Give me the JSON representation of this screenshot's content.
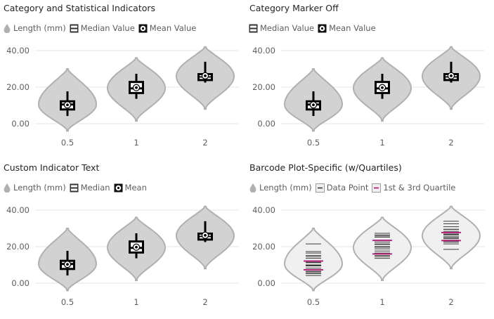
{
  "colors": {
    "violin_fill": "#d2d2d2",
    "violin_fill_light": "#f0f0f0",
    "violin_stroke": "#b0b0b0",
    "box": "#000000",
    "quartile": "#b5267e",
    "data_line": "#3c3c3c",
    "grid": "#e6e6e6",
    "text": "#605e5c",
    "title": "#252423"
  },
  "panels": [
    {
      "title": "Category and Statistical Indicators",
      "legend": [
        {
          "label": "Length (mm)",
          "icon": "drop-icon"
        },
        {
          "label": "Median Value",
          "icon": "median-box-icon"
        },
        {
          "label": "Mean Value",
          "icon": "mean-circle-icon"
        }
      ]
    },
    {
      "title": "Category Marker Off",
      "legend": [
        {
          "label": "Median Value",
          "icon": "median-box-icon"
        },
        {
          "label": "Mean Value",
          "icon": "mean-circle-icon"
        }
      ]
    },
    {
      "title": "Custom Indicator Text",
      "legend": [
        {
          "label": "Length (mm)",
          "icon": "drop-icon"
        },
        {
          "label": "Median",
          "icon": "median-box-icon"
        },
        {
          "label": "Mean",
          "icon": "mean-circle-icon"
        }
      ]
    },
    {
      "title": "Barcode Plot-Specific (w/Quartiles)",
      "legend": [
        {
          "label": "Length (mm)",
          "icon": "drop-icon"
        },
        {
          "label": "Data Point",
          "icon": "data-point-icon"
        },
        {
          "label": "1st & 3rd Quartile",
          "icon": "quartile-icon"
        }
      ]
    }
  ],
  "chart_data": [
    {
      "type": "violin",
      "style": "box",
      "title": "Category and Statistical Indicators",
      "categories": [
        "0.5",
        "1",
        "2"
      ],
      "y_ticks": [
        "0.00",
        "20.00",
        "40.00"
      ],
      "ylim": [
        -4,
        42
      ],
      "grid": true,
      "series": [
        {
          "name": "Length (mm)",
          "groups": [
            {
              "category": "0.5",
              "min": 4.2,
              "q1": 7.2,
              "median": 10.5,
              "q3": 12.8,
              "max": 17.7,
              "mean": 10.3,
              "density_range": [
                -4,
                30
              ],
              "peak": 10.5
            },
            {
              "category": "1",
              "min": 13.6,
              "q1": 16.2,
              "median": 19.3,
              "q3": 23.4,
              "max": 27.3,
              "mean": 19.7,
              "density_range": [
                1.5,
                36
              ],
              "peak": 19.5
            },
            {
              "category": "2",
              "min": 22.5,
              "q1": 23.3,
              "median": 25.8,
              "q3": 27.7,
              "max": 33.9,
              "mean": 26.2,
              "density_range": [
                8,
                42
              ],
              "peak": 26
            }
          ]
        }
      ]
    },
    {
      "type": "violin",
      "style": "box",
      "title": "Category Marker Off",
      "categories": [
        "0.5",
        "1",
        "2"
      ],
      "y_ticks": [
        "0.00",
        "20.00",
        "40.00"
      ],
      "ylim": [
        -4,
        42
      ],
      "grid": true,
      "series": [
        {
          "name": "Length (mm)",
          "groups": [
            {
              "category": "0.5",
              "min": 4.2,
              "q1": 7.2,
              "median": 10.5,
              "q3": 12.8,
              "max": 17.7,
              "mean": 10.3,
              "density_range": [
                -4,
                30
              ],
              "peak": 10.5
            },
            {
              "category": "1",
              "min": 13.6,
              "q1": 16.2,
              "median": 19.3,
              "q3": 23.4,
              "max": 27.3,
              "mean": 19.7,
              "density_range": [
                1.5,
                36
              ],
              "peak": 19.5
            },
            {
              "category": "2",
              "min": 22.5,
              "q1": 23.3,
              "median": 25.8,
              "q3": 27.7,
              "max": 33.9,
              "mean": 26.2,
              "density_range": [
                8,
                42
              ],
              "peak": 26
            }
          ]
        }
      ]
    },
    {
      "type": "violin",
      "style": "box",
      "title": "Custom Indicator Text",
      "categories": [
        "0.5",
        "1",
        "2"
      ],
      "y_ticks": [
        "0.00",
        "20.00",
        "40.00"
      ],
      "ylim": [
        -4,
        42
      ],
      "grid": true,
      "series": [
        {
          "name": "Length (mm)",
          "groups": [
            {
              "category": "0.5",
              "min": 4.2,
              "q1": 7.2,
              "median": 10.5,
              "q3": 12.8,
              "max": 17.7,
              "mean": 10.3,
              "density_range": [
                -4,
                30
              ],
              "peak": 10.5
            },
            {
              "category": "1",
              "min": 13.6,
              "q1": 16.2,
              "median": 19.3,
              "q3": 23.4,
              "max": 27.3,
              "mean": 19.7,
              "density_range": [
                1.5,
                36
              ],
              "peak": 19.5
            },
            {
              "category": "2",
              "min": 22.5,
              "q1": 23.3,
              "median": 25.8,
              "q3": 27.7,
              "max": 33.9,
              "mean": 26.2,
              "density_range": [
                8,
                42
              ],
              "peak": 26
            }
          ]
        }
      ]
    },
    {
      "type": "violin",
      "style": "barcode",
      "title": "Barcode Plot-Specific (w/Quartiles)",
      "categories": [
        "0.5",
        "1",
        "2"
      ],
      "y_ticks": [
        "0.00",
        "20.00",
        "40.00"
      ],
      "ylim": [
        -4,
        42
      ],
      "grid": true,
      "series": [
        {
          "name": "Length (mm)",
          "groups": [
            {
              "category": "0.5",
              "points": [
                4.2,
                5.2,
                5.8,
                6.4,
                7.0,
                7.3,
                8.2,
                9.4,
                9.7,
                10.0,
                11.2,
                11.5,
                13.6,
                14.5,
                15.2,
                16.5,
                17.3,
                21.5
              ],
              "quartiles": [
                7.3,
                12.1
              ],
              "density_range": [
                -4,
                30
              ],
              "peak": 10.5
            },
            {
              "category": "1",
              "points": [
                13.6,
                14.5,
                15.2,
                16.5,
                17.6,
                18.8,
                19.7,
                20.0,
                21.2,
                21.5,
                22.5,
                23.3,
                23.6,
                25.2,
                25.8,
                26.4,
                27.3
              ],
              "quartiles": [
                16.0,
                23.4
              ],
              "density_range": [
                1.5,
                36
              ],
              "peak": 19.5
            },
            {
              "category": "2",
              "points": [
                18.5,
                21.5,
                22.4,
                23.0,
                23.3,
                23.6,
                24.5,
                24.8,
                25.5,
                26.4,
                26.7,
                27.3,
                28.4,
                29.4,
                29.5,
                30.9,
                32.5,
                33.9
              ],
              "quartiles": [
                23.3,
                27.7
              ],
              "density_range": [
                8,
                42
              ],
              "peak": 26
            }
          ]
        }
      ]
    }
  ]
}
